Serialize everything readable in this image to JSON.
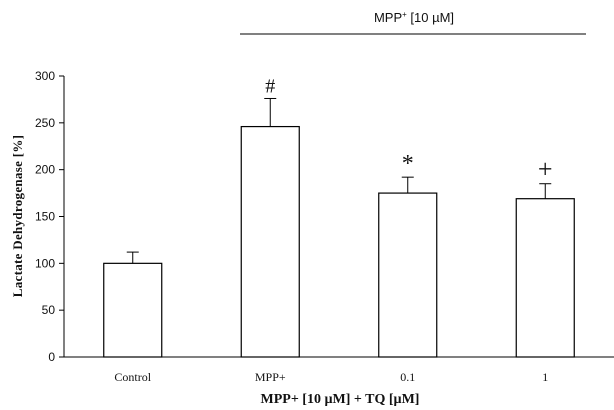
{
  "chart_data": {
    "type": "bar",
    "categories": [
      "Control",
      "MPP+",
      "0.1",
      "1"
    ],
    "values": [
      100,
      246,
      175,
      169
    ],
    "error_bars": [
      12,
      30,
      17,
      16
    ],
    "significance_markers": [
      "",
      "#",
      "*",
      "+"
    ],
    "xlabel": "MPP+ [10 µM] + TQ [µM]",
    "ylabel": "Lactate Dehydrogenase [%]",
    "ylim": [
      0,
      300
    ],
    "yticks": [
      0,
      50,
      100,
      150,
      200,
      250,
      300
    ],
    "group_label": {
      "prefix": "MPP",
      "superscript": "+",
      "suffix": " [10 µM]",
      "spans_categories": [
        "MPP+",
        "0.1",
        "1"
      ]
    },
    "grid": false,
    "legend": "none",
    "colors": {
      "bar_fill": "#ffffff",
      "bar_stroke": "#000000",
      "axis": "#000000"
    }
  }
}
